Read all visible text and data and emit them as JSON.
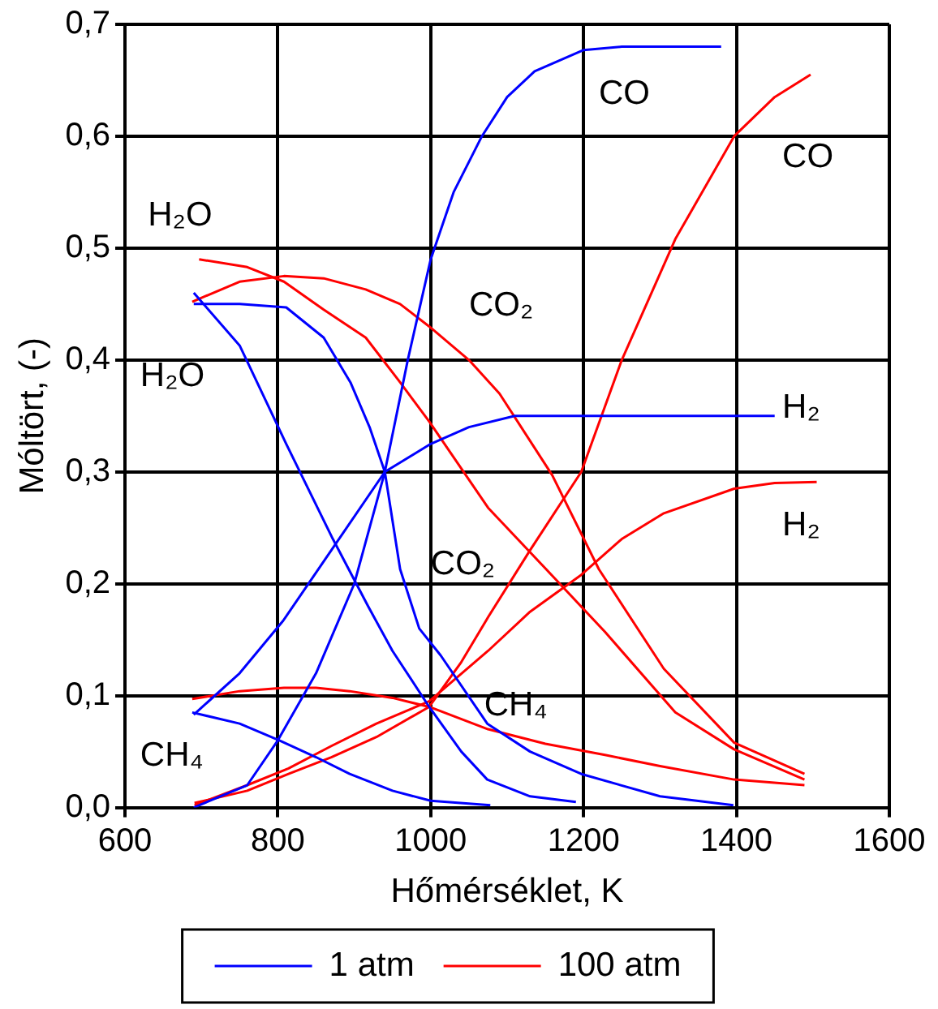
{
  "chart_data": {
    "type": "line",
    "xlabel": "Hőmérséklet, K",
    "ylabel": "Móltört, (-)",
    "xlim": [
      600,
      1600
    ],
    "xticks": [
      600,
      800,
      1000,
      1200,
      1400,
      1600
    ],
    "ylim": [
      0,
      0.7
    ],
    "yticks": [
      {
        "value": 0,
        "label": "0,0"
      },
      {
        "value": 0.1,
        "label": "0,1"
      },
      {
        "value": 0.2,
        "label": "0,2"
      },
      {
        "value": 0.3,
        "label": "0,3"
      },
      {
        "value": 0.4,
        "label": "0,4"
      },
      {
        "value": 0.5,
        "label": "0,5"
      },
      {
        "value": 0.6,
        "label": "0,6"
      },
      {
        "value": 0.7,
        "label": "0,7"
      }
    ],
    "grid": true,
    "legend": "bottom",
    "marker": "none",
    "line_style": "solid",
    "series": [
      {
        "name": "1 atm",
        "color": "#0000ff",
        "x": [
          690,
          760,
          800,
          850,
          900,
          940,
          970,
          1000,
          1030,
          1067,
          1100,
          1136,
          1200,
          1250,
          1380
        ],
        "values": [
          0,
          0.02,
          0.06,
          0.12,
          0.2,
          0.3,
          0.4,
          0.49,
          0.55,
          0.6,
          0.635,
          0.658,
          0.677,
          0.68,
          0.68
        ]
      },
      {
        "color": "#0000ff",
        "x": [
          690,
          750,
          807,
          870,
          940,
          1000,
          1050,
          1110,
          1450
        ],
        "values": [
          0.083,
          0.12,
          0.167,
          0.23,
          0.3,
          0.325,
          0.34,
          0.35,
          0.35
        ]
      },
      {
        "color": "#0000ff",
        "x": [
          690,
          750,
          811,
          872,
          918,
          950,
          998,
          1040,
          1074,
          1130,
          1190
        ],
        "values": [
          0.46,
          0.413,
          0.325,
          0.24,
          0.18,
          0.14,
          0.09,
          0.05,
          0.025,
          0.01,
          0.005
        ]
      },
      {
        "color": "#0000ff",
        "x": [
          690,
          750,
          811,
          860,
          895,
          920,
          940,
          960,
          985,
          1013,
          1074,
          1130,
          1197,
          1300,
          1396
        ],
        "values": [
          0.45,
          0.45,
          0.447,
          0.42,
          0.38,
          0.34,
          0.3,
          0.213,
          0.16,
          0.136,
          0.075,
          0.05,
          0.03,
          0.01,
          0.002
        ]
      },
      {
        "color": "#0000ff",
        "x": [
          688,
          750,
          802,
          850,
          894,
          950,
          1000,
          1078
        ],
        "values": [
          0.085,
          0.075,
          0.06,
          0.045,
          0.03,
          0.015,
          0.006,
          0.002
        ]
      },
      {
        "name": "100 atm",
        "color": "#ff0000",
        "x": [
          691,
          760,
          814,
          870,
          929,
          998,
          1040,
          1075,
          1130,
          1197,
          1250,
          1320,
          1397,
          1450,
          1497
        ],
        "values": [
          0.004,
          0.015,
          0.03,
          0.045,
          0.063,
          0.09,
          0.13,
          0.17,
          0.23,
          0.3,
          0.4,
          0.508,
          0.6,
          0.635,
          0.655
        ]
      },
      {
        "color": "#ff0000",
        "x": [
          691,
          760,
          814,
          870,
          929,
          998,
          1075,
          1130,
          1197,
          1250,
          1305,
          1397,
          1450,
          1505
        ],
        "values": [
          0.002,
          0.02,
          0.035,
          0.055,
          0.075,
          0.095,
          0.14,
          0.175,
          0.208,
          0.24,
          0.263,
          0.285,
          0.29,
          0.291
        ]
      },
      {
        "color": "#ff0000",
        "x": [
          697,
          760,
          808,
          860,
          915,
          960,
          998,
          1075,
          1151,
          1228,
          1320,
          1397,
          1489
        ],
        "values": [
          0.49,
          0.483,
          0.47,
          0.445,
          0.42,
          0.38,
          0.345,
          0.268,
          0.213,
          0.157,
          0.085,
          0.052,
          0.025
        ]
      },
      {
        "color": "#ff0000",
        "x": [
          688,
          750,
          808,
          860,
          915,
          960,
          998,
          1050,
          1090,
          1159,
          1220,
          1305,
          1397,
          1489
        ],
        "values": [
          0.452,
          0.47,
          0.475,
          0.473,
          0.463,
          0.45,
          0.43,
          0.4,
          0.37,
          0.297,
          0.213,
          0.124,
          0.058,
          0.03
        ]
      },
      {
        "color": "#ff0000",
        "x": [
          688,
          750,
          808,
          850,
          894,
          950,
          998,
          1075,
          1150,
          1228,
          1300,
          1397,
          1489
        ],
        "values": [
          0.097,
          0.104,
          0.107,
          0.107,
          0.104,
          0.098,
          0.09,
          0.07,
          0.057,
          0.047,
          0.037,
          0.025,
          0.02
        ]
      }
    ],
    "annotations": [
      "CO",
      "CO",
      "H₂O",
      "H₂O",
      "CO₂",
      "CO₂",
      "H₂",
      "H₂",
      "CH₄",
      "CH₄"
    ]
  }
}
